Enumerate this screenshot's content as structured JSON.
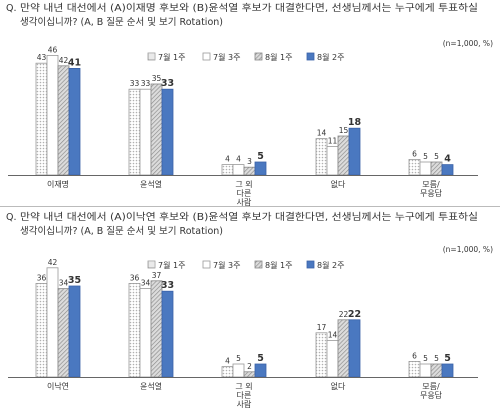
{
  "chart_data": [
    {
      "type": "bar",
      "question_prefix": "Q.",
      "question_line1": "만약 내년 대선에서 (A)이재명 후보와 (B)윤석열 후보가 대결한다면, 선생님께서는 누구에게 투표하실",
      "question_line2": "생각이십니까? (A, B 질문 순서 및 보기 Rotation)",
      "sample_note": "(n=1,000, %)",
      "categories": [
        [
          "이재명"
        ],
        [
          "윤석열"
        ],
        [
          "그 외",
          "다른",
          "사람"
        ],
        [
          "없다"
        ],
        [
          "모름/",
          "무응답"
        ]
      ],
      "series": [
        {
          "name": "7월 1주",
          "values": [
            43,
            33,
            4,
            14,
            6
          ]
        },
        {
          "name": "7월 3주",
          "values": [
            46,
            33,
            4,
            11,
            5
          ]
        },
        {
          "name": "8월 1주",
          "values": [
            42,
            35,
            3,
            15,
            5
          ]
        },
        {
          "name": "8월 2주",
          "values": [
            41,
            33,
            5,
            18,
            4
          ]
        }
      ],
      "ylim": [
        0,
        50
      ],
      "grid": false,
      "legend": "top-center"
    },
    {
      "type": "bar",
      "question_prefix": "Q.",
      "question_line1": "만약 내년 대선에서 (A)이낙연 후보와 (B)윤석열 후보가 대결한다면, 선생님께서는 누구에게 투표하실",
      "question_line2": "생각이십니까? (A, B 질문 순서 및 보기 Rotation)",
      "sample_note": "(n=1,000, %)",
      "categories": [
        [
          "이낙연"
        ],
        [
          "윤석열"
        ],
        [
          "그 외",
          "다른",
          "사람"
        ],
        [
          "없다"
        ],
        [
          "모름/",
          "무응답"
        ]
      ],
      "series": [
        {
          "name": "7월 1주",
          "values": [
            36,
            36,
            4,
            17,
            6
          ]
        },
        {
          "name": "7월 3주",
          "values": [
            42,
            34,
            5,
            14,
            5
          ]
        },
        {
          "name": "8월 1주",
          "values": [
            34,
            37,
            2,
            22,
            5
          ]
        },
        {
          "name": "8월 2주",
          "values": [
            35,
            33,
            5,
            22,
            5
          ]
        }
      ],
      "ylim": [
        0,
        50
      ],
      "grid": false,
      "legend": "top-center"
    }
  ],
  "colors": {
    "series_fill": [
      "#ffffff",
      "#ffffff",
      "#c8c8c8",
      "#4a78c0"
    ],
    "series_stroke": [
      "#999999",
      "#999999",
      "#888888",
      "#3a62a8"
    ],
    "text": "#333333",
    "axis": "#666666"
  }
}
